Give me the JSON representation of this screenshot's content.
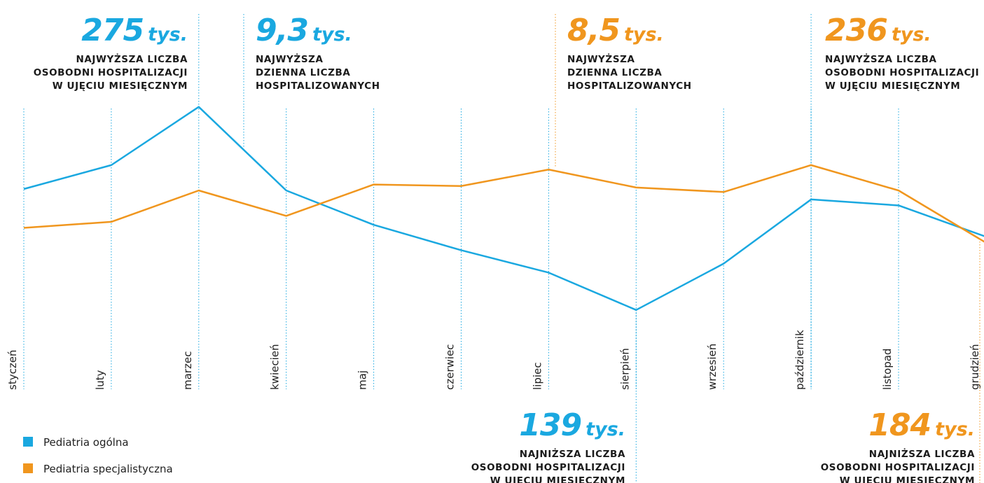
{
  "chart_data": {
    "type": "line",
    "categories": [
      "styczeń",
      "luty",
      "marzec",
      "kwiecień",
      "maj",
      "czerwiec",
      "lipiec",
      "sierpień",
      "wrzesień",
      "październik",
      "listopad",
      "grudzień"
    ],
    "series": [
      {
        "name": "Pediatria ogólna",
        "color": "#1aa8e0",
        "values": [
          220,
          236,
          275,
          219,
          196,
          179,
          164,
          139,
          170,
          213,
          209,
          188
        ]
      },
      {
        "name": "Pediatria specjalistyczna",
        "color": "#f0961e",
        "values": [
          194,
          198,
          219,
          202,
          223,
          222,
          233,
          221,
          218,
          236,
          219,
          184
        ]
      }
    ],
    "ylim": [
      130,
      280
    ],
    "annotations": [
      {
        "value": "275",
        "unit": "tys.",
        "color": "#1aa8e0",
        "lines": [
          "NAJWYŻSZA LICZBA",
          "OSOBODNI HOSPITALIZACJI",
          "W UJĘCIU MIESIĘCZNYM"
        ]
      },
      {
        "value": "9,3",
        "unit": "tys.",
        "color": "#1aa8e0",
        "lines": [
          "NAJWYŻSZA",
          "DZIENNA LICZBA",
          "HOSPITALIZOWANYCH"
        ]
      },
      {
        "value": "8,5",
        "unit": "tys.",
        "color": "#f0961e",
        "lines": [
          "NAJWYŻSZA",
          "DZIENNA LICZBA",
          "HOSPITALIZOWANYCH"
        ]
      },
      {
        "value": "236",
        "unit": "tys.",
        "color": "#f0961e",
        "lines": [
          "NAJWYŻSZA LICZBA",
          "OSOBODNI HOSPITALIZACJI",
          "W UJĘCIU MIESIĘCZNYM"
        ]
      },
      {
        "value": "139",
        "unit": "tys.",
        "color": "#1aa8e0",
        "lines": [
          "NAJNIŻSZA LICZBA",
          "OSOBODNI HOSPITALIZACJI",
          "W UJECIU MIESIECZNYM"
        ]
      },
      {
        "value": "184",
        "unit": "tys.",
        "color": "#f0961e",
        "lines": [
          "NAJNIŻSZA LICZBA",
          "OSOBODNI HOSPITALIZACJI",
          "W UJECIU MIESIECZNYM"
        ]
      }
    ]
  }
}
